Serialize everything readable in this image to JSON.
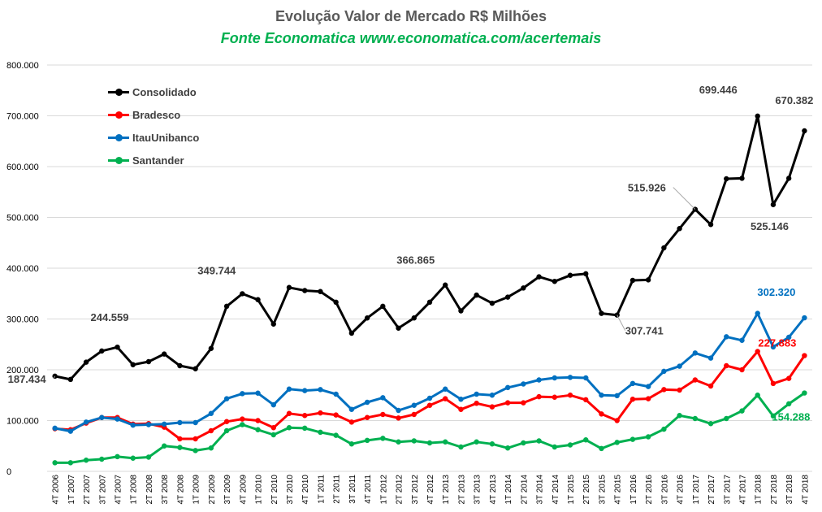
{
  "title": "Evolução  Valor de Mercado R$ Milhões",
  "subtitle": "Fonte Economatica www.economatica.com/acertemais",
  "colors": {
    "title": "#595959",
    "subtitle": "#00b050",
    "consolidado": "#000000",
    "bradesco": "#ff0000",
    "itau": "#0070c0",
    "santander": "#00b050",
    "grid": "#d9d9d9",
    "axis_text": "#000000"
  },
  "chart_data": {
    "type": "line",
    "title": "Evolução  Valor de Mercado R$ Milhões",
    "subtitle": "Fonte Economatica www.economatica.com/acertemais",
    "xlabel": "",
    "ylabel": "",
    "ylim": [
      0,
      800000
    ],
    "yticks": [
      0,
      100000,
      200000,
      300000,
      400000,
      500000,
      600000,
      700000,
      800000
    ],
    "ytick_labels": [
      "0",
      "100.000",
      "200.000",
      "300.000",
      "400.000",
      "500.000",
      "600.000",
      "700.000",
      "800.000"
    ],
    "grid": true,
    "legend_position": "top-left",
    "categories": [
      "4T 2006",
      "1T 2007",
      "2T 2007",
      "3T 2007",
      "4T 2007",
      "1T 2008",
      "2T 2008",
      "3T 2008",
      "4T 2008",
      "1T 2009",
      "2T 2009",
      "3T 2009",
      "4T 2009",
      "1T 2010",
      "2T 2010",
      "3T 2010",
      "4T 2010",
      "1T 2011",
      "2T 2011",
      "3T 2011",
      "4T 2011",
      "1T 2012",
      "2T 2012",
      "3T 2012",
      "4T 2012",
      "1T 2013",
      "2T 2013",
      "3T 2013",
      "4T 2013",
      "1T 2014",
      "2T 2014",
      "3T 2014",
      "4T 2014",
      "1T 2015",
      "2T 2015",
      "3T 2015",
      "4T 2015",
      "1T 2016",
      "2T 2016",
      "3T 2016",
      "4T 2016",
      "1T 2017",
      "2T 2017",
      "3T 2017",
      "4T 2017",
      "1T 2018",
      "2T 2018",
      "3T 2018",
      "4T 2018"
    ],
    "series": [
      {
        "name": "Consolidado",
        "color": "#000000",
        "values": [
          187434,
          181000,
          215000,
          237000,
          244559,
          210000,
          216000,
          231000,
          208000,
          202000,
          242000,
          325000,
          349744,
          338000,
          290000,
          362000,
          356000,
          354000,
          333000,
          272000,
          302000,
          325000,
          282000,
          302000,
          333000,
          366865,
          316000,
          347000,
          331000,
          343000,
          361000,
          383000,
          374000,
          386000,
          389000,
          311000,
          307741,
          376000,
          377000,
          440000,
          478000,
          515926,
          486000,
          576000,
          577000,
          699446,
          525146,
          577000,
          670382
        ]
      },
      {
        "name": "Bradesco",
        "color": "#ff0000",
        "values": [
          84000,
          82000,
          95000,
          106000,
          106000,
          93000,
          94000,
          87000,
          64000,
          64000,
          80000,
          98000,
          103000,
          100000,
          86000,
          114000,
          110000,
          115000,
          111000,
          97000,
          106000,
          112000,
          105000,
          112000,
          130000,
          143000,
          122000,
          134000,
          127000,
          135000,
          135000,
          147000,
          146000,
          150000,
          141000,
          113000,
          100000,
          142000,
          143000,
          161000,
          160000,
          180000,
          168000,
          208000,
          200000,
          236000,
          173000,
          183000,
          227883
        ]
      },
      {
        "name": "ItauUnibanco",
        "color": "#0070c0",
        "values": [
          85000,
          79000,
          97000,
          106000,
          103000,
          91000,
          92000,
          93000,
          96000,
          96000,
          114000,
          143000,
          153000,
          154000,
          131000,
          162000,
          159000,
          161000,
          152000,
          122000,
          136000,
          145000,
          120000,
          130000,
          144000,
          162000,
          142000,
          152000,
          150000,
          165000,
          172000,
          180000,
          184000,
          185000,
          184000,
          150000,
          149000,
          173000,
          167000,
          197000,
          207000,
          233000,
          223000,
          265000,
          258000,
          311000,
          245000,
          264000,
          302320
        ]
      },
      {
        "name": "Santander",
        "color": "#00b050",
        "values": [
          17000,
          17000,
          22000,
          24000,
          29000,
          26000,
          28000,
          50000,
          47000,
          41000,
          46000,
          80000,
          92000,
          82000,
          72000,
          86000,
          85000,
          77000,
          71000,
          54000,
          61000,
          65000,
          58000,
          60000,
          56000,
          58000,
          48000,
          58000,
          54000,
          46000,
          56000,
          60000,
          48000,
          52000,
          62000,
          45000,
          57000,
          63000,
          68000,
          83000,
          110000,
          104000,
          94000,
          104000,
          119000,
          150000,
          109000,
          133000,
          154288
        ]
      }
    ],
    "annotations": [
      {
        "series": "Consolidado",
        "category": "4T 2006",
        "text": "187.434"
      },
      {
        "series": "Consolidado",
        "category": "4T 2007",
        "text": "244.559"
      },
      {
        "series": "Consolidado",
        "category": "4T 2009",
        "text": "349.744"
      },
      {
        "series": "Consolidado",
        "category": "1T 2013",
        "text": "366.865"
      },
      {
        "series": "Consolidado",
        "category": "4T 2015",
        "text": "307.741"
      },
      {
        "series": "Consolidado",
        "category": "1T 2017",
        "text": "515.926"
      },
      {
        "series": "Consolidado",
        "category": "1T 2018",
        "text": "699.446"
      },
      {
        "series": "Consolidado",
        "category": "2T 2018",
        "text": "525.146"
      },
      {
        "series": "Consolidado",
        "category": "4T 2018",
        "text": "670.382"
      },
      {
        "series": "ItauUnibanco",
        "category": "4T 2018",
        "text": "302.320"
      },
      {
        "series": "Bradesco",
        "category": "4T 2018",
        "text": "227.883"
      },
      {
        "series": "Santander",
        "category": "4T 2018",
        "text": "154.288"
      }
    ]
  }
}
